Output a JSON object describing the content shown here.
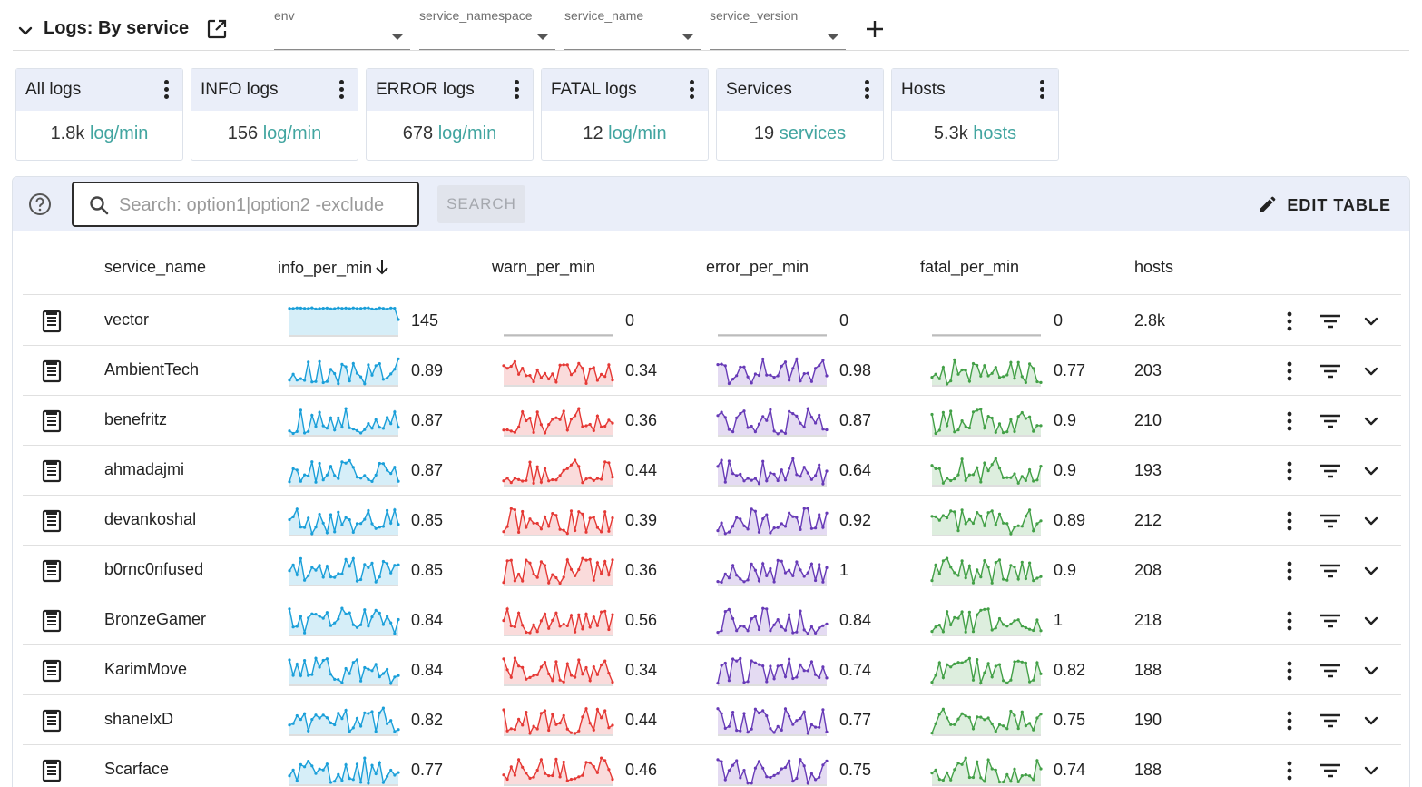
{
  "dashboard": {
    "title": "Logs: By service"
  },
  "filters": [
    {
      "label": "env",
      "value": ""
    },
    {
      "label": "service_namespace",
      "value": ""
    },
    {
      "label": "service_name",
      "value": ""
    },
    {
      "label": "service_version",
      "value": ""
    }
  ],
  "cards": [
    {
      "title": "All logs",
      "value": "1.8k",
      "unit": "log/min"
    },
    {
      "title": "INFO logs",
      "value": "156",
      "unit": "log/min"
    },
    {
      "title": "ERROR logs",
      "value": "678",
      "unit": "log/min"
    },
    {
      "title": "FATAL logs",
      "value": "12",
      "unit": "log/min"
    },
    {
      "title": "Services",
      "value": "19",
      "unit": "services"
    },
    {
      "title": "Hosts",
      "value": "5.3k",
      "unit": "hosts"
    }
  ],
  "accent_color": "#42a5a0",
  "toolbar": {
    "search_placeholder": "Search: option1|option2 -exclude",
    "search_label": "SEARCH",
    "edit_label": "EDIT TABLE"
  },
  "table": {
    "columns": [
      "service_name",
      "info_per_min",
      "warn_per_min",
      "error_per_min",
      "fatal_per_min",
      "hosts"
    ],
    "sort": {
      "column": "info_per_min",
      "direction": "desc"
    },
    "series_colors": {
      "info": "#1a9fd9",
      "warn": "#e53935",
      "error": "#673ab7",
      "fatal": "#43a047"
    },
    "rows": [
      {
        "service": "vector",
        "info": "145",
        "warn": "0",
        "error": "0",
        "fatal": "0",
        "hosts": "2.8k"
      },
      {
        "service": "AmbientTech",
        "info": "0.89",
        "warn": "0.34",
        "error": "0.98",
        "fatal": "0.77",
        "hosts": "203"
      },
      {
        "service": "benefritz",
        "info": "0.87",
        "warn": "0.36",
        "error": "0.87",
        "fatal": "0.9",
        "hosts": "210"
      },
      {
        "service": "ahmadajmi",
        "info": "0.87",
        "warn": "0.44",
        "error": "0.64",
        "fatal": "0.9",
        "hosts": "193"
      },
      {
        "service": "devankoshal",
        "info": "0.85",
        "warn": "0.39",
        "error": "0.92",
        "fatal": "0.89",
        "hosts": "212"
      },
      {
        "service": "b0rnc0nfused",
        "info": "0.85",
        "warn": "0.36",
        "error": "1",
        "fatal": "0.9",
        "hosts": "208"
      },
      {
        "service": "BronzeGamer",
        "info": "0.84",
        "warn": "0.56",
        "error": "0.84",
        "fatal": "1",
        "hosts": "218"
      },
      {
        "service": "KarimMove",
        "info": "0.84",
        "warn": "0.34",
        "error": "0.74",
        "fatal": "0.82",
        "hosts": "188"
      },
      {
        "service": "shaneIxD",
        "info": "0.82",
        "warn": "0.44",
        "error": "0.77",
        "fatal": "0.75",
        "hosts": "190"
      },
      {
        "service": "Scarface",
        "info": "0.77",
        "warn": "0.46",
        "error": "0.75",
        "fatal": "0.74",
        "hosts": "188"
      }
    ]
  }
}
